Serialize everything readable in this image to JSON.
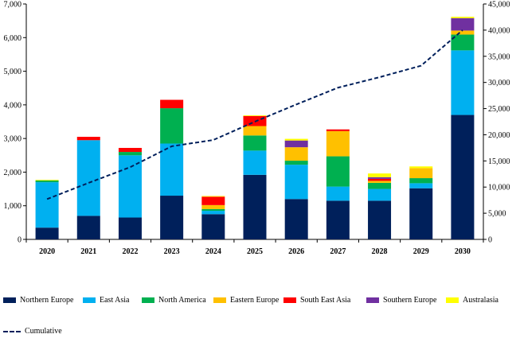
{
  "chart_data": {
    "type": "bar",
    "stacked": true,
    "categories": [
      "2020",
      "2021",
      "2022",
      "2023",
      "2024",
      "2025",
      "2026",
      "2027",
      "2028",
      "2029",
      "2030"
    ],
    "ylim": [
      0,
      7000
    ],
    "y2lim": [
      0,
      45000
    ],
    "yticks": [
      "0",
      "1,000",
      "2,000",
      "3,000",
      "4,000",
      "5,000",
      "6,000",
      "7,000"
    ],
    "y2ticks": [
      "0",
      "5,000",
      "10,000",
      "15,000",
      "20,000",
      "25,000",
      "30,000",
      "35,000",
      "40,000",
      "45,000"
    ],
    "series": [
      {
        "name": "Northern Europe",
        "color": "#00205b",
        "values": [
          350,
          700,
          650,
          1300,
          750,
          1920,
          1200,
          1150,
          1150,
          1520,
          3700
        ]
      },
      {
        "name": "East Asia",
        "color": "#00b0f0",
        "values": [
          1350,
          2250,
          1850,
          1550,
          100,
          720,
          1020,
          420,
          350,
          150,
          1920
        ]
      },
      {
        "name": "North America",
        "color": "#00b050",
        "values": [
          50,
          0,
          100,
          1050,
          50,
          450,
          120,
          900,
          180,
          150,
          470
        ]
      },
      {
        "name": "Eastern Europe",
        "color": "#ffc000",
        "values": [
          0,
          0,
          0,
          0,
          120,
          280,
          400,
          750,
          60,
          300,
          120
        ]
      },
      {
        "name": "South East Asia",
        "color": "#ff0000",
        "values": [
          0,
          100,
          120,
          250,
          250,
          300,
          0,
          50,
          60,
          0,
          0
        ]
      },
      {
        "name": "Southern Europe",
        "color": "#7030a0",
        "values": [
          0,
          0,
          0,
          0,
          0,
          0,
          200,
          0,
          50,
          0,
          370
        ]
      },
      {
        "name": "Australasia",
        "color": "#ffff00",
        "values": [
          20,
          0,
          0,
          0,
          20,
          20,
          50,
          0,
          110,
          50,
          40
        ]
      }
    ],
    "line": {
      "name": "Cumulative",
      "color": "#001f5b",
      "values": [
        7700,
        10800,
        13800,
        17800,
        19000,
        22500,
        25800,
        29000,
        31000,
        33200,
        40000
      ]
    },
    "xlabel": "",
    "ylabel": "",
    "grid": false,
    "legend": "bottom"
  }
}
